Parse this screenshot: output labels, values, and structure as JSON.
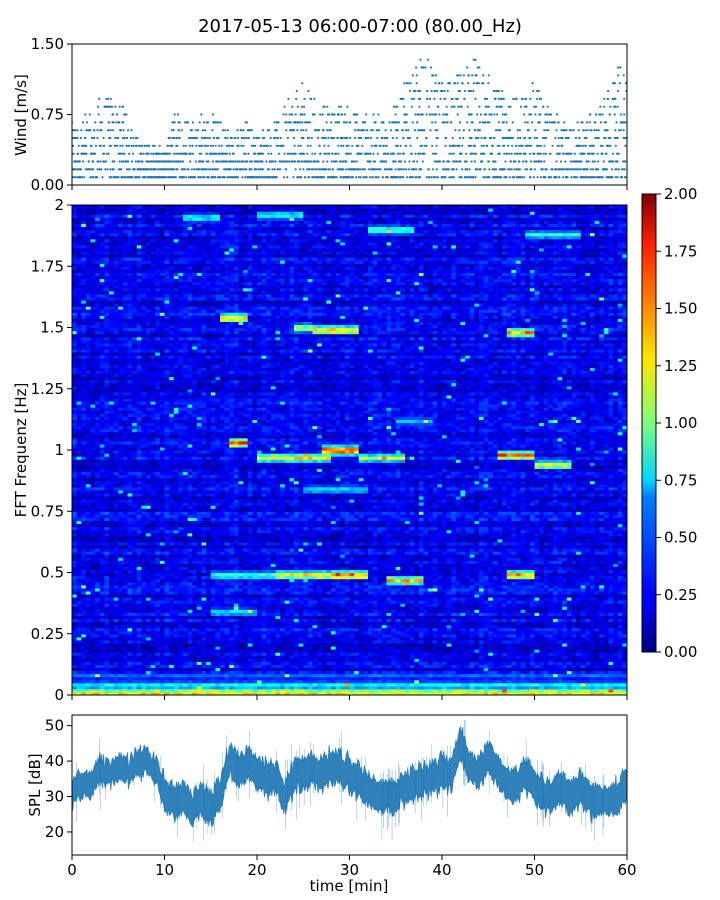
{
  "title": "2017-05-13 06:00-07:00 (80.00_Hz)",
  "chart_data": [
    {
      "type": "scatter",
      "panel": "wind",
      "ylabel": "Wind [m/s]",
      "xlim": [
        0,
        60
      ],
      "ylim": [
        0,
        1.5
      ],
      "yticks": [
        "0.00",
        "0.75",
        "1.50"
      ],
      "x_tick_labels_shown": false,
      "grid": false,
      "color": "#1f77b4",
      "quantization_step": 0.0833,
      "envelope": {
        "x": [
          0,
          2,
          3,
          5,
          6,
          7,
          9,
          10,
          11,
          13,
          15,
          16,
          17,
          19,
          20,
          22,
          24,
          25,
          26,
          28,
          30,
          32,
          34,
          35,
          36,
          37,
          38,
          39,
          40,
          42,
          43,
          45,
          47,
          49,
          50,
          51,
          53,
          55,
          56,
          57,
          58,
          59,
          60
        ],
        "max": [
          0.67,
          0.75,
          0.92,
          1.0,
          0.75,
          0.5,
          0.42,
          0.33,
          0.75,
          0.75,
          0.75,
          0.67,
          0.58,
          0.67,
          0.58,
          0.67,
          1.0,
          1.08,
          0.92,
          0.83,
          0.83,
          0.75,
          0.75,
          0.83,
          1.08,
          1.17,
          1.5,
          1.25,
          1.08,
          1.17,
          1.42,
          1.17,
          0.92,
          1.0,
          1.17,
          0.92,
          0.67,
          0.67,
          0.75,
          0.83,
          1.0,
          1.25,
          1.17
        ]
      }
    },
    {
      "type": "heatmap",
      "panel": "spectrogram",
      "ylabel": "FFT Frequenz [Hz]",
      "xlim": [
        0,
        60
      ],
      "ylim": [
        0,
        2
      ],
      "yticks": [
        "0",
        "0.25",
        "0.5",
        "0.75",
        "1",
        "1.25",
        "1.5",
        "1.75",
        "2"
      ],
      "colormap": "jet",
      "clim": [
        0,
        2
      ],
      "colorbar_ticks": [
        "0.00",
        "0.25",
        "0.50",
        "0.75",
        "1.00",
        "1.25",
        "1.50",
        "1.75",
        "2.00"
      ],
      "background_level": 0.22,
      "features": [
        {
          "x0": 0,
          "x1": 60,
          "f": 0.01,
          "v": 1.5
        },
        {
          "x0": 0,
          "x1": 60,
          "f": 0.04,
          "v": 0.9
        },
        {
          "x0": 0,
          "x1": 60,
          "f": 0.08,
          "v": 0.5
        },
        {
          "x0": 17,
          "x1": 19,
          "f": 1.03,
          "v": 1.7
        },
        {
          "x0": 16,
          "x1": 19,
          "f": 1.54,
          "v": 1.6
        },
        {
          "x0": 20,
          "x1": 28,
          "f": 0.97,
          "v": 1.4
        },
        {
          "x0": 27,
          "x1": 31,
          "f": 1.0,
          "v": 1.9
        },
        {
          "x0": 31,
          "x1": 36,
          "f": 0.97,
          "v": 1.2
        },
        {
          "x0": 46,
          "x1": 50,
          "f": 0.98,
          "v": 1.7
        },
        {
          "x0": 50,
          "x1": 54,
          "f": 0.94,
          "v": 1.4
        },
        {
          "x0": 22,
          "x1": 28,
          "f": 0.49,
          "v": 1.5
        },
        {
          "x0": 28,
          "x1": 32,
          "f": 0.49,
          "v": 1.8
        },
        {
          "x0": 34,
          "x1": 38,
          "f": 0.47,
          "v": 1.5
        },
        {
          "x0": 47,
          "x1": 50,
          "f": 0.49,
          "v": 1.7
        },
        {
          "x0": 15,
          "x1": 22,
          "f": 0.49,
          "v": 1.0
        },
        {
          "x0": 24,
          "x1": 26,
          "f": 1.5,
          "v": 1.3
        },
        {
          "x0": 26,
          "x1": 31,
          "f": 1.49,
          "v": 1.6
        },
        {
          "x0": 47,
          "x1": 50,
          "f": 1.48,
          "v": 1.6
        },
        {
          "x0": 32,
          "x1": 37,
          "f": 1.9,
          "v": 1.0
        },
        {
          "x0": 12,
          "x1": 16,
          "f": 1.95,
          "v": 0.9
        },
        {
          "x0": 20,
          "x1": 25,
          "f": 1.96,
          "v": 0.9
        },
        {
          "x0": 49,
          "x1": 55,
          "f": 1.88,
          "v": 0.9
        },
        {
          "x0": 25,
          "x1": 32,
          "f": 0.84,
          "v": 0.8
        },
        {
          "x0": 15,
          "x1": 20,
          "f": 0.34,
          "v": 0.8
        },
        {
          "x0": 35,
          "x1": 39,
          "f": 1.12,
          "v": 0.7
        }
      ]
    },
    {
      "type": "area",
      "panel": "spl",
      "ylabel": "SPL [dB]",
      "xlabel": "time [min]",
      "xlim": [
        0,
        60
      ],
      "ylim": [
        13.5,
        53
      ],
      "yticks": [
        "20",
        "30",
        "40",
        "50"
      ],
      "xticks": [
        "0",
        "10",
        "20",
        "30",
        "40",
        "50",
        "60"
      ],
      "color": "#1f77b4",
      "x": [
        0,
        1,
        2,
        3,
        4,
        5,
        6,
        7,
        8,
        9,
        10,
        11,
        12,
        13,
        14,
        15,
        16,
        17,
        18,
        19,
        20,
        21,
        22,
        23,
        24,
        25,
        26,
        27,
        28,
        29,
        30,
        31,
        32,
        33,
        34,
        35,
        36,
        37,
        38,
        39,
        40,
        41,
        42,
        43,
        44,
        45,
        46,
        47,
        48,
        49,
        50,
        51,
        52,
        53,
        54,
        55,
        56,
        57,
        58,
        59,
        60
      ],
      "mean": [
        31,
        34,
        33,
        38,
        36,
        38,
        37,
        39,
        40,
        38,
        31,
        28,
        30,
        26,
        30,
        26,
        31,
        40,
        38,
        39,
        37,
        35,
        35,
        30,
        36,
        37,
        38,
        36,
        39,
        38,
        36,
        34,
        32,
        30,
        30,
        31,
        32,
        34,
        35,
        35,
        37,
        36,
        45,
        38,
        37,
        41,
        37,
        34,
        33,
        36,
        33,
        30,
        31,
        32,
        30,
        33,
        28,
        29,
        28,
        30,
        34
      ],
      "spread": [
        4,
        4,
        4,
        4,
        4,
        4,
        4,
        4,
        4,
        4,
        5,
        5,
        5,
        5,
        5,
        5,
        5,
        5,
        5,
        5,
        5,
        5,
        5,
        5,
        5,
        5,
        5,
        5,
        5,
        5,
        5,
        5,
        5,
        5,
        5,
        5,
        5,
        5,
        5,
        5,
        5,
        5,
        5,
        5,
        5,
        5,
        5,
        5,
        5,
        5,
        5,
        5,
        5,
        5,
        5,
        5,
        5,
        5,
        5,
        5,
        5
      ]
    }
  ]
}
